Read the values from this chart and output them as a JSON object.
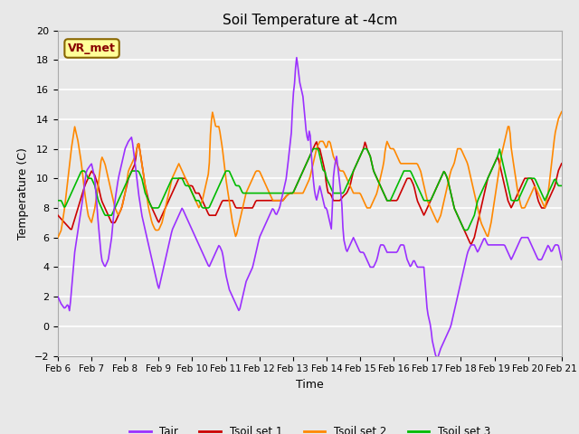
{
  "title": "Soil Temperature at -4cm",
  "xlabel": "Time",
  "ylabel": "Temperature (C)",
  "ylim": [
    -2,
    20
  ],
  "yticks": [
    -2,
    0,
    2,
    4,
    6,
    8,
    10,
    12,
    14,
    16,
    18,
    20
  ],
  "x_labels": [
    "Feb 6",
    "Feb 7",
    "Feb 8",
    "Feb 9",
    "Feb 10",
    "Feb 11",
    "Feb 12",
    "Feb 13",
    "Feb 14",
    "Feb 15",
    "Feb 16",
    "Feb 17",
    "Feb 18",
    "Feb 19",
    "Feb 20",
    "Feb 21"
  ],
  "tair_color": "#9b30ff",
  "tsoil1_color": "#cc0000",
  "tsoil2_color": "#ff8800",
  "tsoil3_color": "#00bb00",
  "fig_bg_color": "#e8e8e8",
  "plot_bg_color": "#e8e8e8",
  "grid_color": "#ffffff",
  "annotation_text": "VR_met",
  "annotation_bg": "#ffff99",
  "annotation_border": "#886600",
  "annotation_text_color": "#880000",
  "legend_labels": [
    "Tair",
    "Tsoil set 1",
    "Tsoil set 2",
    "Tsoil set 3"
  ],
  "n_points": 480
}
